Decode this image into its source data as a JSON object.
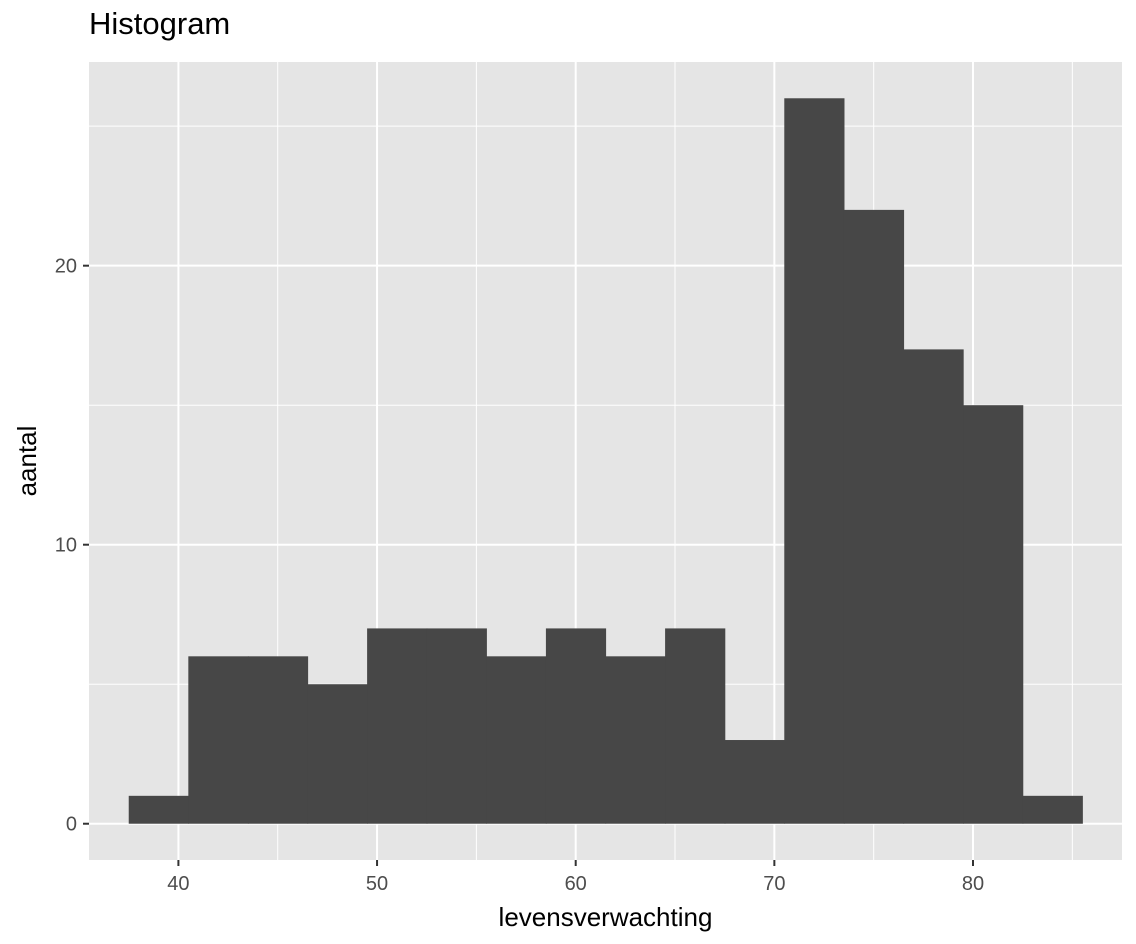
{
  "chart_data": {
    "type": "bar",
    "title": "Histogram",
    "xlabel": "levensverwachting",
    "ylabel": "aantal",
    "xlim": [
      35.5,
      87.5
    ],
    "ylim": [
      -1.3,
      27.3
    ],
    "x_ticks": [
      40,
      50,
      60,
      70,
      80
    ],
    "y_ticks": [
      0,
      10,
      20
    ],
    "bin_width": 3,
    "bins": [
      {
        "x_start": 37.5,
        "x_end": 40.5,
        "count": 1
      },
      {
        "x_start": 40.5,
        "x_end": 43.5,
        "count": 6
      },
      {
        "x_start": 43.5,
        "x_end": 46.5,
        "count": 6
      },
      {
        "x_start": 46.5,
        "x_end": 49.5,
        "count": 5
      },
      {
        "x_start": 49.5,
        "x_end": 52.5,
        "count": 7
      },
      {
        "x_start": 52.5,
        "x_end": 55.5,
        "count": 7
      },
      {
        "x_start": 55.5,
        "x_end": 58.5,
        "count": 6
      },
      {
        "x_start": 58.5,
        "x_end": 61.5,
        "count": 7
      },
      {
        "x_start": 61.5,
        "x_end": 64.5,
        "count": 6
      },
      {
        "x_start": 64.5,
        "x_end": 67.5,
        "count": 7
      },
      {
        "x_start": 67.5,
        "x_end": 70.5,
        "count": 3
      },
      {
        "x_start": 70.5,
        "x_end": 73.5,
        "count": 26
      },
      {
        "x_start": 73.5,
        "x_end": 76.5,
        "count": 22
      },
      {
        "x_start": 76.5,
        "x_end": 79.5,
        "count": 17
      },
      {
        "x_start": 79.5,
        "x_end": 82.5,
        "count": 15
      },
      {
        "x_start": 82.5,
        "x_end": 85.5,
        "count": 1
      }
    ],
    "grid": true,
    "colors": {
      "panel_background": "#e5e5e5",
      "grid": "#ffffff",
      "bar_fill": "#474747",
      "tick_text": "#4d4d4d",
      "tick_mark": "#333333"
    }
  }
}
